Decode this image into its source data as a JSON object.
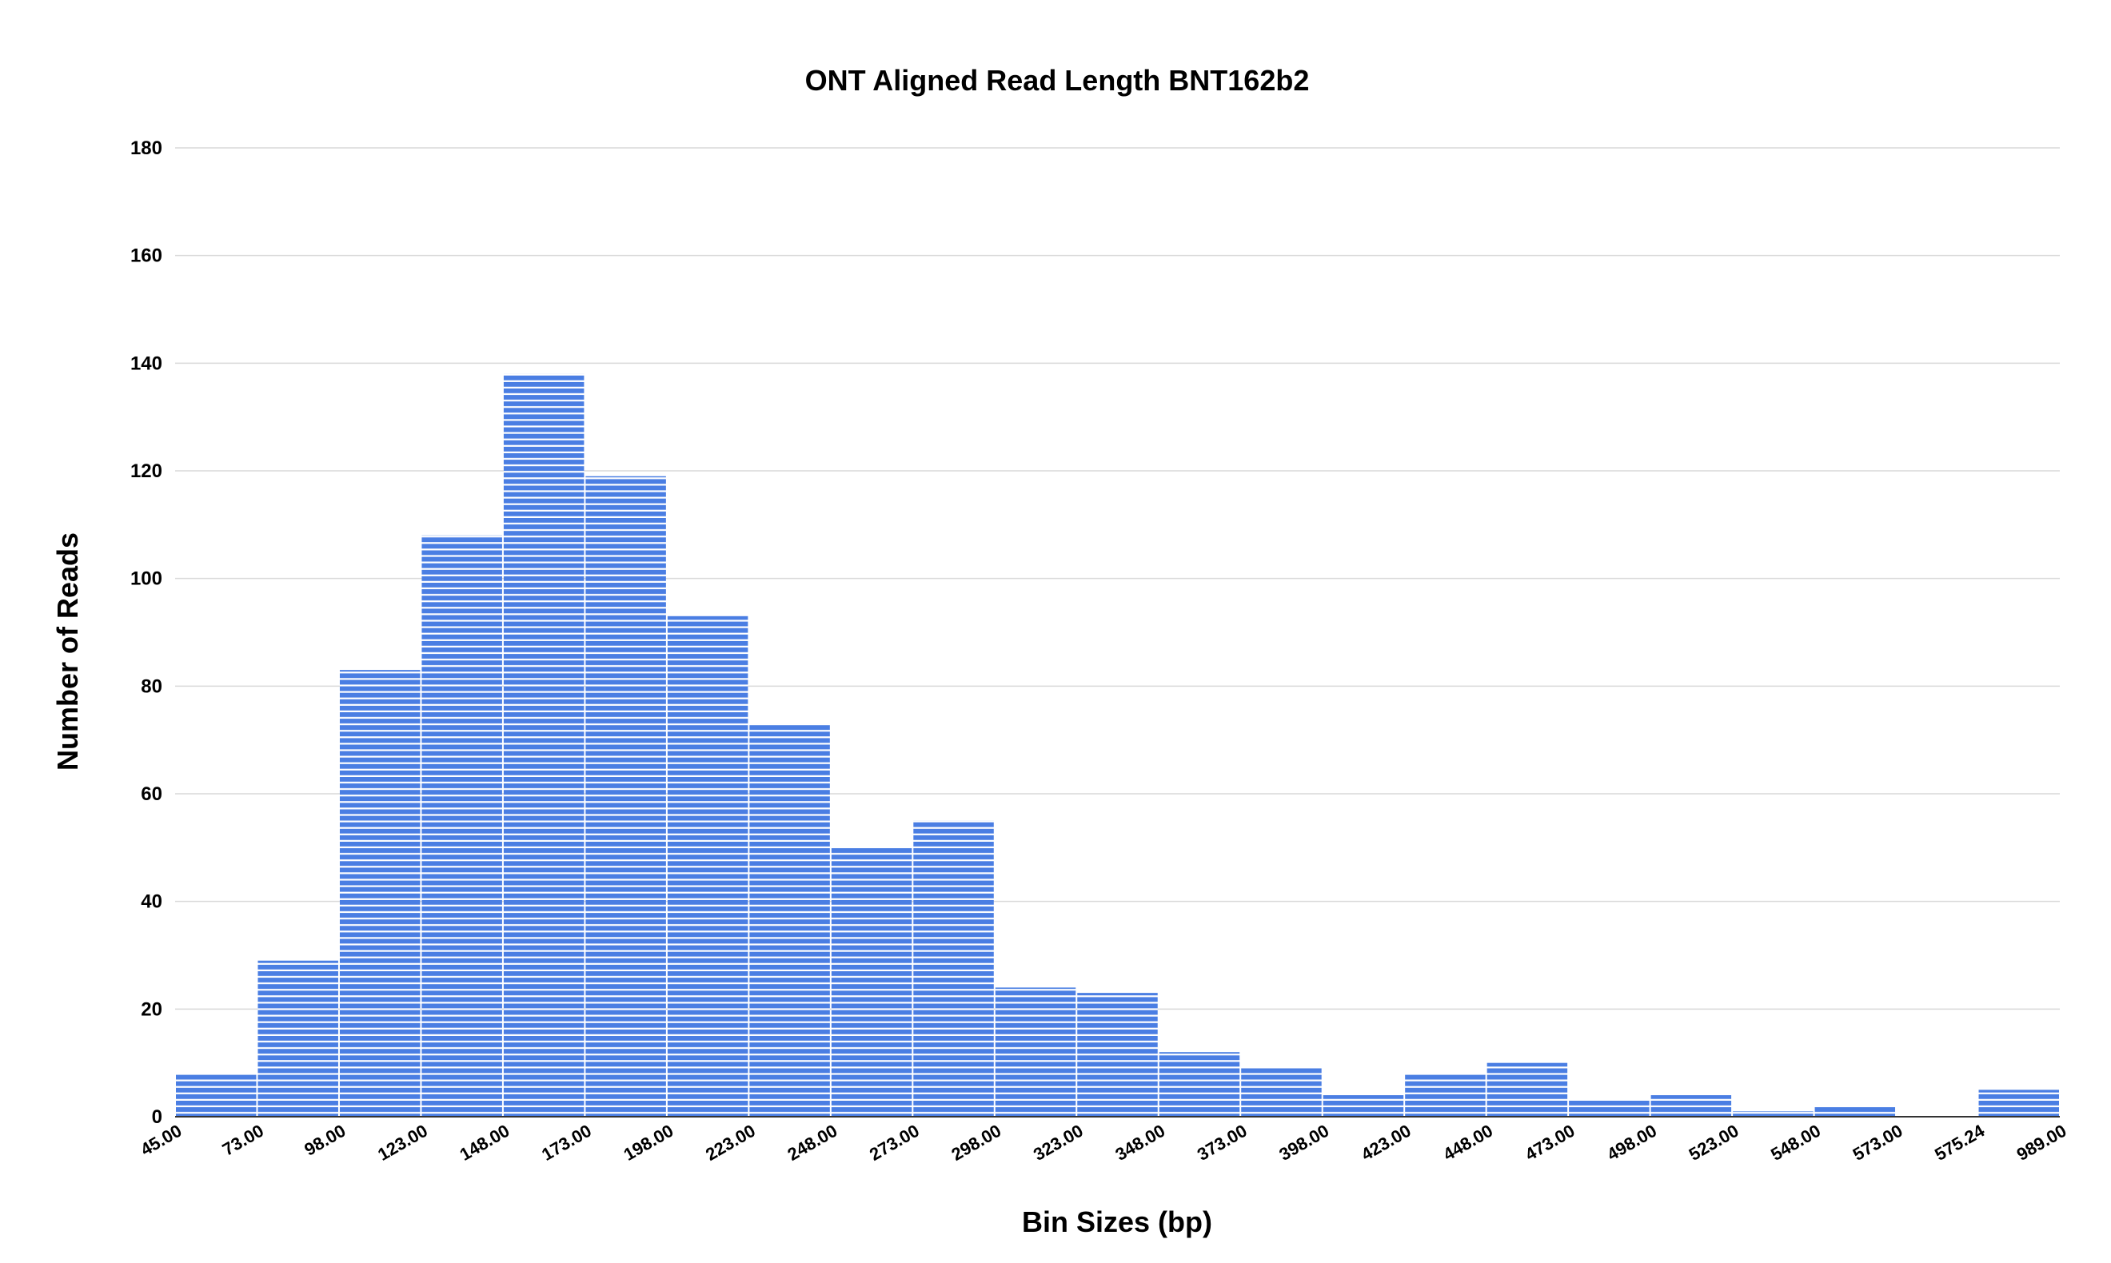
{
  "chart_data": {
    "type": "bar",
    "title": "ONT Aligned Read Length BNT162b2",
    "xlabel": "Bin Sizes (bp)",
    "ylabel": "Number of Reads",
    "ylim": [
      0,
      180
    ],
    "yticks": [
      0,
      20,
      40,
      60,
      80,
      100,
      120,
      140,
      160,
      180
    ],
    "bin_edges": [
      "45.00",
      "73.00",
      "98.00",
      "123.00",
      "148.00",
      "173.00",
      "198.00",
      "223.00",
      "248.00",
      "273.00",
      "298.00",
      "323.00",
      "348.00",
      "373.00",
      "398.00",
      "423.00",
      "448.00",
      "473.00",
      "498.00",
      "523.00",
      "548.00",
      "573.00",
      "575.24",
      "989.00"
    ],
    "values": [
      8,
      29,
      83,
      108,
      138,
      119,
      93,
      73,
      50,
      55,
      24,
      23,
      12,
      9,
      4,
      8,
      10,
      3,
      4,
      1,
      2,
      0,
      5
    ],
    "bar_color": "#4a7ee3",
    "bar_pattern": "horizontal white stripes",
    "grid": true,
    "legend": "none"
  }
}
